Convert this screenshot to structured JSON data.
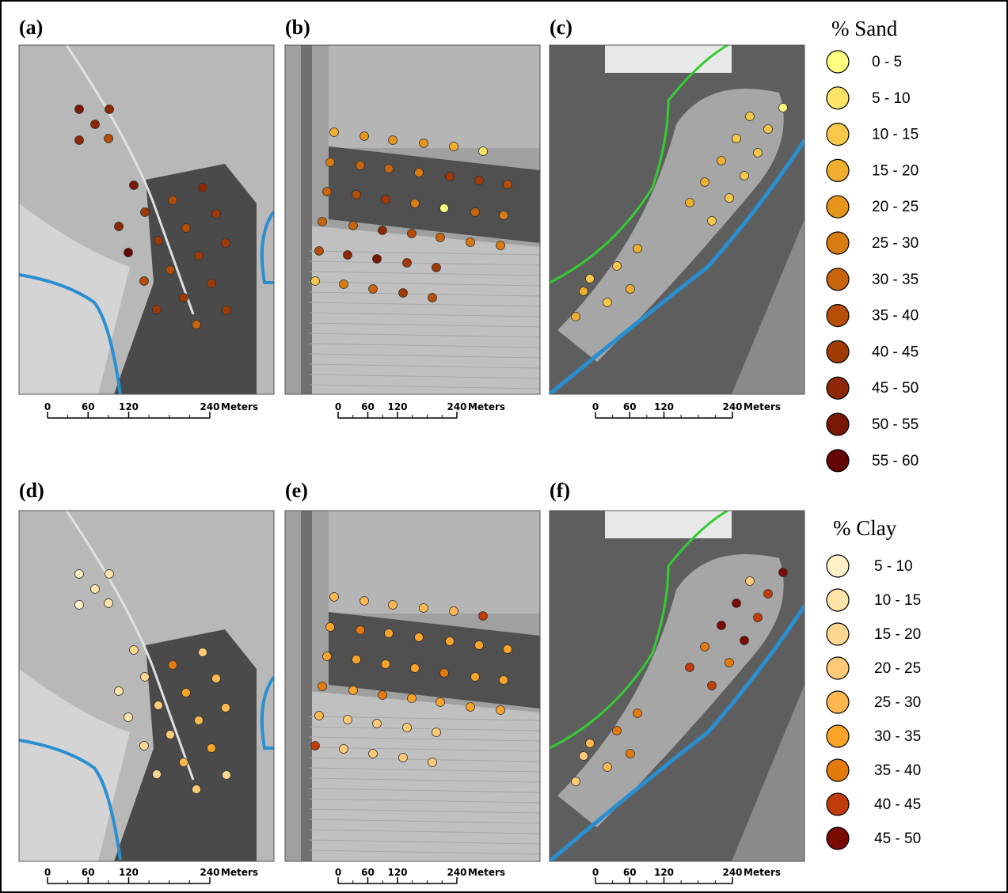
{
  "panels": [
    {
      "label": "(a)"
    },
    {
      "label": "(b)"
    },
    {
      "label": "(c)"
    },
    {
      "label": "(d)"
    },
    {
      "label": "(e)"
    },
    {
      "label": "(f)"
    }
  ],
  "scale_bar": {
    "ticks": [
      0,
      60,
      120,
      240
    ],
    "unit": "Meters"
  },
  "legends": [
    {
      "title": "% Sand",
      "items": [
        {
          "label": "0 - 5",
          "color": "#ffff80"
        },
        {
          "label": "5 - 10",
          "color": "#fde467"
        },
        {
          "label": "10 - 15",
          "color": "#f8c84a"
        },
        {
          "label": "15 - 20",
          "color": "#f0ae2e"
        },
        {
          "label": "20 - 25",
          "color": "#e6941a"
        },
        {
          "label": "25 - 30",
          "color": "#d87c10"
        },
        {
          "label": "30 - 35",
          "color": "#c8640b"
        },
        {
          "label": "35 - 40",
          "color": "#b54d07"
        },
        {
          "label": "40 - 45",
          "color": "#a03a05"
        },
        {
          "label": "45 - 50",
          "color": "#8c2804"
        },
        {
          "label": "50 - 55",
          "color": "#781703"
        },
        {
          "label": "55 - 60",
          "color": "#640604"
        }
      ]
    },
    {
      "title": "% Clay",
      "items": [
        {
          "label": "5 - 10",
          "color": "#fff0c8"
        },
        {
          "label": "10 - 15",
          "color": "#ffe4aa"
        },
        {
          "label": "15 - 20",
          "color": "#ffd890"
        },
        {
          "label": "20 - 25",
          "color": "#ffca78"
        },
        {
          "label": "25 - 30",
          "color": "#ffb850"
        },
        {
          "label": "30 - 35",
          "color": "#fba428"
        },
        {
          "label": "35 - 40",
          "color": "#e57a0c"
        },
        {
          "label": "40 - 45",
          "color": "#c03c08"
        },
        {
          "label": "45 - 50",
          "color": "#7a0a04"
        }
      ]
    }
  ]
}
